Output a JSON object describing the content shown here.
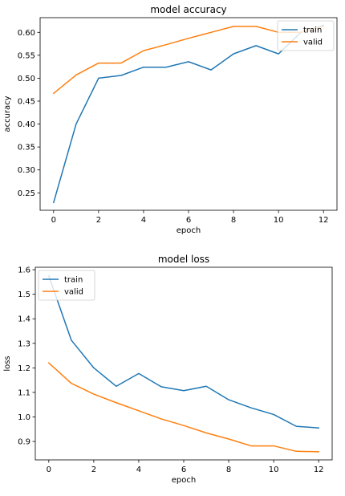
{
  "chart_data": [
    {
      "type": "line",
      "title": "model accuracy",
      "xlabel": "epoch",
      "ylabel": "accuracy",
      "xlim": [
        -0.6,
        12.6
      ],
      "ylim": [
        0.212,
        0.632
      ],
      "xticks": [
        0,
        2,
        4,
        6,
        8,
        10,
        12
      ],
      "yticks": [
        0.25,
        0.3,
        0.35,
        0.4,
        0.45,
        0.5,
        0.55,
        0.6
      ],
      "ytick_labels": [
        "0.25",
        "0.30",
        "0.35",
        "0.40",
        "0.45",
        "0.50",
        "0.55",
        "0.60"
      ],
      "grid": false,
      "legend": "upper right",
      "x": [
        0,
        1,
        2,
        3,
        4,
        5,
        6,
        7,
        8,
        9,
        10,
        11,
        12
      ],
      "series": [
        {
          "name": "train",
          "color": "#1f77b4",
          "values": [
            0.229,
            0.4,
            0.5,
            0.506,
            0.524,
            0.524,
            0.536,
            0.518,
            0.553,
            0.571,
            0.553,
            0.6,
            0.615
          ]
        },
        {
          "name": "valid",
          "color": "#ff7f0e",
          "values": [
            0.467,
            0.507,
            0.533,
            0.533,
            0.56,
            0.573,
            0.587,
            0.6,
            0.613,
            0.613,
            0.6,
            0.6,
            0.613
          ]
        }
      ]
    },
    {
      "type": "line",
      "title": "model loss",
      "xlabel": "epoch",
      "ylabel": "loss",
      "xlim": [
        -0.6,
        12.6
      ],
      "ylim": [
        0.825,
        1.61
      ],
      "xticks": [
        0,
        2,
        4,
        6,
        8,
        10,
        12
      ],
      "yticks": [
        0.9,
        1.0,
        1.1,
        1.2,
        1.3,
        1.4,
        1.5,
        1.6
      ],
      "ytick_labels": [
        "0.9",
        "1.0",
        "1.1",
        "1.2",
        "1.3",
        "1.4",
        "1.5",
        "1.6"
      ],
      "grid": false,
      "legend": "upper left",
      "x": [
        0,
        1,
        2,
        3,
        4,
        5,
        6,
        7,
        8,
        9,
        10,
        11,
        12
      ],
      "series": [
        {
          "name": "train",
          "color": "#1f77b4",
          "values": [
            1.575,
            1.313,
            1.2,
            1.125,
            1.177,
            1.123,
            1.107,
            1.125,
            1.07,
            1.037,
            1.01,
            0.962,
            0.955
          ]
        },
        {
          "name": "valid",
          "color": "#ff7f0e",
          "values": [
            1.22,
            1.137,
            1.093,
            1.058,
            1.025,
            0.992,
            0.965,
            0.935,
            0.91,
            0.882,
            0.882,
            0.86,
            0.858
          ]
        }
      ]
    }
  ]
}
